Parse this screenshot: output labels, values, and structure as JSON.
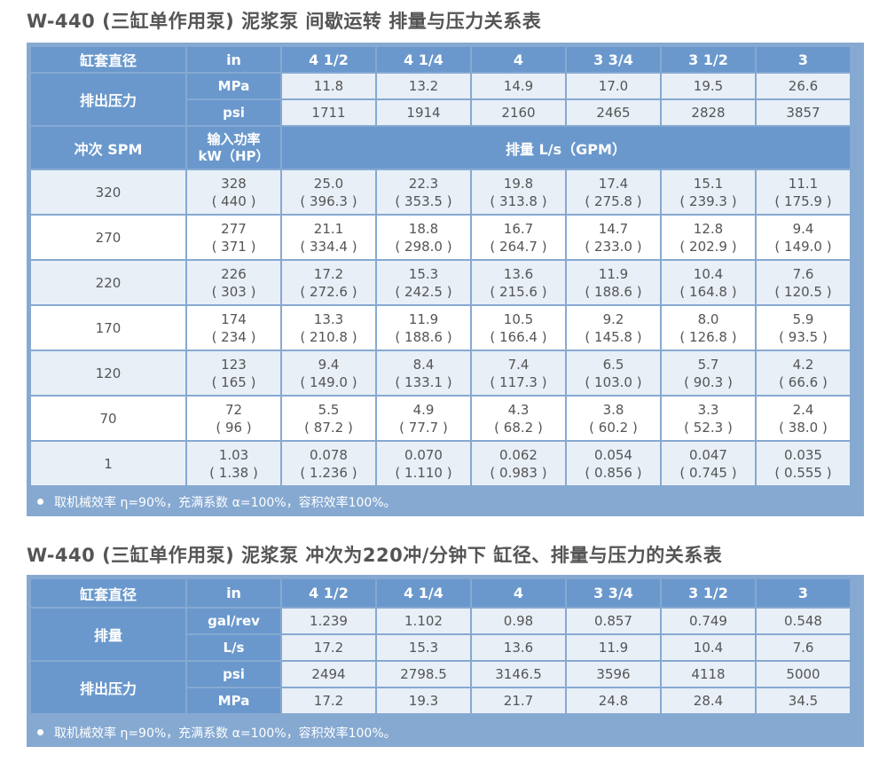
{
  "table1": {
    "title": "W-440 (三缸单作用泵) 泥浆泵  间歇运转  排量与压力关系表",
    "liner_label": "缸套直径",
    "unit_in": "in",
    "sizes": [
      "4 1/2",
      "4 1/4",
      "4",
      "3 3/4",
      "3 1/2",
      "3"
    ],
    "pressure_label": "排出压力",
    "mpa_label": "MPa",
    "psi_label": "psi",
    "mpa": [
      "11.8",
      "13.2",
      "14.9",
      "17.0",
      "19.5",
      "26.6"
    ],
    "psi": [
      "1711",
      "1914",
      "2160",
      "2465",
      "2828",
      "3857"
    ],
    "spm_label": "冲次   SPM",
    "power_label_1": "输入功率",
    "power_label_2": "kW（HP）",
    "flow_label": "排量    L/s（GPM）",
    "rows": [
      {
        "spm": "320",
        "kw": "328",
        "hp": "( 440 )",
        "flow": [
          [
            "25.0",
            "( 396.3 )"
          ],
          [
            "22.3",
            "( 353.5 )"
          ],
          [
            "19.8",
            "( 313.8 )"
          ],
          [
            "17.4",
            "( 275.8 )"
          ],
          [
            "15.1",
            "( 239.3 )"
          ],
          [
            "11.1",
            "( 175.9 )"
          ]
        ]
      },
      {
        "spm": "270",
        "kw": "277",
        "hp": "( 371 )",
        "flow": [
          [
            "21.1",
            "( 334.4 )"
          ],
          [
            "18.8",
            "( 298.0 )"
          ],
          [
            "16.7",
            "( 264.7 )"
          ],
          [
            "14.7",
            "( 233.0 )"
          ],
          [
            "12.8",
            "( 202.9 )"
          ],
          [
            "9.4",
            "( 149.0 )"
          ]
        ]
      },
      {
        "spm": "220",
        "kw": "226",
        "hp": "( 303 )",
        "flow": [
          [
            "17.2",
            "( 272.6 )"
          ],
          [
            "15.3",
            "( 242.5 )"
          ],
          [
            "13.6",
            "( 215.6 )"
          ],
          [
            "11.9",
            "( 188.6 )"
          ],
          [
            "10.4",
            "( 164.8 )"
          ],
          [
            "7.6",
            "( 120.5 )"
          ]
        ]
      },
      {
        "spm": "170",
        "kw": "174",
        "hp": "( 234 )",
        "flow": [
          [
            "13.3",
            "( 210.8 )"
          ],
          [
            "11.9",
            "( 188.6 )"
          ],
          [
            "10.5",
            "( 166.4 )"
          ],
          [
            "9.2",
            "( 145.8 )"
          ],
          [
            "8.0",
            "( 126.8 )"
          ],
          [
            "5.9",
            "( 93.5 )"
          ]
        ]
      },
      {
        "spm": "120",
        "kw": "123",
        "hp": "( 165 )",
        "flow": [
          [
            "9.4",
            "( 149.0 )"
          ],
          [
            "8.4",
            "( 133.1 )"
          ],
          [
            "7.4",
            "( 117.3 )"
          ],
          [
            "6.5",
            "( 103.0 )"
          ],
          [
            "5.7",
            "( 90.3 )"
          ],
          [
            "4.2",
            "( 66.6 )"
          ]
        ]
      },
      {
        "spm": "70",
        "kw": "72",
        "hp": "( 96 )",
        "flow": [
          [
            "5.5",
            "( 87.2 )"
          ],
          [
            "4.9",
            "( 77.7 )"
          ],
          [
            "4.3",
            "( 68.2 )"
          ],
          [
            "3.8",
            "( 60.2 )"
          ],
          [
            "3.3",
            "( 52.3 )"
          ],
          [
            "2.4",
            "( 38.0 )"
          ]
        ]
      },
      {
        "spm": "1",
        "kw": "1.03",
        "hp": "( 1.38 )",
        "flow": [
          [
            "0.078",
            "( 1.236 )"
          ],
          [
            "0.070",
            "( 1.110 )"
          ],
          [
            "0.062",
            "( 0.983 )"
          ],
          [
            "0.054",
            "( 0.856 )"
          ],
          [
            "0.047",
            "( 0.745 )"
          ],
          [
            "0.035",
            "( 0.555 )"
          ]
        ]
      }
    ],
    "note": "取机械效率 η=90%，充满系数 α=100%，容积效率100%。"
  },
  "table2": {
    "title": "W-440 (三缸单作用泵) 泥浆泵  冲次为220冲/分钟下  缸径、排量与压力的关系表",
    "liner_label": "缸套直径",
    "unit_in": "in",
    "sizes": [
      "4 1/2",
      "4 1/4",
      "4",
      "3 3/4",
      "3 1/2",
      "3"
    ],
    "flow_label": "排量",
    "galrev_label": "gal/rev",
    "ls_label": "L/s",
    "galrev": [
      "1.239",
      "1.102",
      "0.98",
      "0.857",
      "0.749",
      "0.548"
    ],
    "ls": [
      "17.2",
      "15.3",
      "13.6",
      "11.9",
      "10.4",
      "7.6"
    ],
    "pressure_label": "排出压力",
    "psi_label": "psi",
    "mpa_label": "MPa",
    "psi": [
      "2494",
      "2798.5",
      "3146.5",
      "3596",
      "4118",
      "5000"
    ],
    "mpa": [
      "17.2",
      "19.3",
      "21.7",
      "24.8",
      "28.4",
      "34.5"
    ],
    "note": "取机械效率 η=90%，充满系数 α=100%，容积效率100%。"
  },
  "colors": {
    "header_bg": "#6a98cc",
    "frame": "#86a9d1",
    "light_row": "#e8eff7"
  }
}
